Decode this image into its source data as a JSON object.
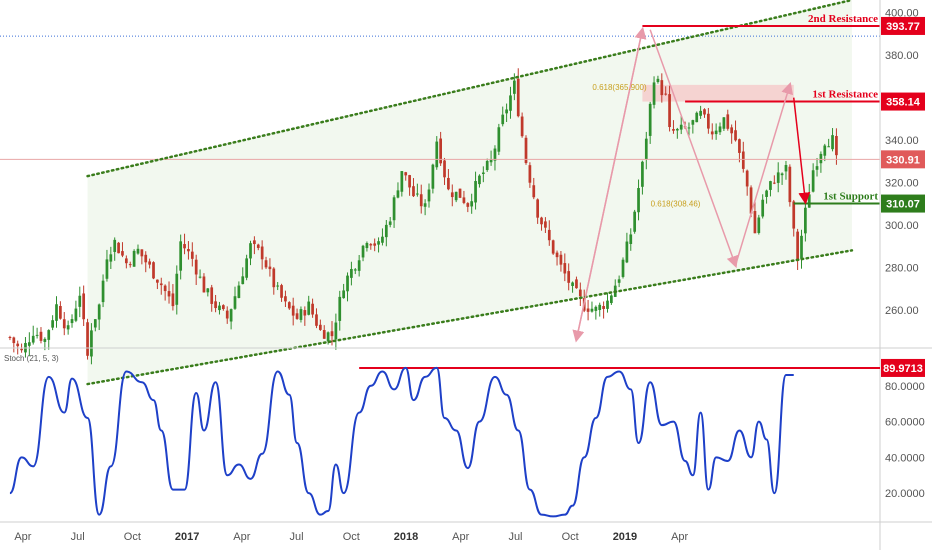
{
  "chart_data": [
    {
      "type": "candlestick",
      "panel": "price",
      "price_axis": {
        "ylim": [
          242,
          406
        ],
        "ticks": [
          "260.00",
          "280.00",
          "300.00",
          "320.00",
          "340.00",
          "380.00",
          "400.00"
        ]
      },
      "time_axis": {
        "ticks": [
          {
            "label": "Apr",
            "year": false
          },
          {
            "label": "Jul",
            "year": false
          },
          {
            "label": "Oct",
            "year": false
          },
          {
            "label": "2017",
            "year": true
          },
          {
            "label": "Apr",
            "year": false
          },
          {
            "label": "Jul",
            "year": false
          },
          {
            "label": "Oct",
            "year": false
          },
          {
            "label": "2018",
            "year": true
          },
          {
            "label": "Apr",
            "year": false
          },
          {
            "label": "Jul",
            "year": false
          },
          {
            "label": "Oct",
            "year": false
          },
          {
            "label": "2019",
            "year": true
          },
          {
            "label": "Apr",
            "year": false
          }
        ]
      },
      "close_path": [
        [
          0,
          247
        ],
        [
          3,
          240
        ],
        [
          6,
          250
        ],
        [
          9,
          246
        ],
        [
          12,
          262
        ],
        [
          15,
          250
        ],
        [
          18,
          268
        ],
        [
          20,
          238
        ],
        [
          21,
          252
        ],
        [
          23,
          262
        ],
        [
          25,
          286
        ],
        [
          27,
          292
        ],
        [
          30,
          282
        ],
        [
          33,
          288
        ],
        [
          36,
          280
        ],
        [
          39,
          272
        ],
        [
          42,
          262
        ],
        [
          44,
          292
        ],
        [
          47,
          284
        ],
        [
          50,
          270
        ],
        [
          53,
          262
        ],
        [
          56,
          256
        ],
        [
          59,
          272
        ],
        [
          62,
          290
        ],
        [
          65,
          286
        ],
        [
          68,
          272
        ],
        [
          71,
          262
        ],
        [
          74,
          256
        ],
        [
          77,
          262
        ],
        [
          80,
          250
        ],
        [
          83,
          248
        ],
        [
          86,
          272
        ],
        [
          89,
          282
        ],
        [
          92,
          294
        ],
        [
          95,
          290
        ],
        [
          98,
          304
        ],
        [
          101,
          326
        ],
        [
          104,
          314
        ],
        [
          107,
          308
        ],
        [
          110,
          340
        ],
        [
          113,
          316
        ],
        [
          116,
          314
        ],
        [
          118,
          310
        ],
        [
          121,
          322
        ],
        [
          124,
          330
        ],
        [
          127,
          350
        ],
        [
          130,
          366
        ],
        [
          133,
          330
        ],
        [
          136,
          306
        ],
        [
          139,
          292
        ],
        [
          142,
          280
        ],
        [
          145,
          270
        ],
        [
          148,
          262
        ],
        [
          151,
          260
        ],
        [
          154,
          264
        ],
        [
          157,
          276
        ],
        [
          160,
          296
        ],
        [
          163,
          328
        ],
        [
          166,
          370
        ],
        [
          169,
          360
        ],
        [
          170,
          344
        ],
        [
          172,
          344
        ],
        [
          175,
          346
        ],
        [
          178,
          352
        ],
        [
          181,
          344
        ],
        [
          184,
          350
        ],
        [
          187,
          340
        ],
        [
          190,
          318
        ],
        [
          192,
          296
        ],
        [
          194,
          312
        ],
        [
          197,
          322
        ],
        [
          200,
          326
        ],
        [
          202,
          296
        ],
        [
          203,
          284
        ],
        [
          205,
          306
        ],
        [
          207,
          326
        ],
        [
          210,
          340
        ],
        [
          212,
          340
        ],
        [
          213,
          330
        ]
      ],
      "channel": {
        "upper": [
          [
            20,
            323
          ],
          [
            217,
            406
          ]
        ],
        "lower": [
          [
            20,
            225
          ],
          [
            217,
            288
          ]
        ]
      },
      "levels": [
        {
          "name": "2nd Resistance",
          "value": 393.77,
          "label": "393.77",
          "color": "#e4001c",
          "note": "2nd Resistance"
        },
        {
          "name": "1st Resistance",
          "value": 358.14,
          "label": "358.14",
          "color": "#e4001c",
          "note": "1st Resistance"
        },
        {
          "name": "1st Support",
          "value": 310.07,
          "label": "310.07",
          "color": "#2e7d1c",
          "note": "1st Support"
        }
      ],
      "last_price": {
        "value": 330.91,
        "label": "330.91",
        "color": "#e05a5a"
      },
      "blue_dotted_line": 389,
      "fib_labels": [
        {
          "text": "0.618(365.900)",
          "x": 163,
          "y": 365
        },
        {
          "text": "0.618(308.46)",
          "x": 178,
          "y": 310
        }
      ],
      "arrows": [
        {
          "from": [
            146,
            246
          ],
          "to": [
            163,
            392
          ]
        },
        {
          "from": [
            165,
            392
          ],
          "to": [
            187,
            281
          ]
        },
        {
          "from": [
            187,
            281
          ],
          "to": [
            201,
            366
          ]
        }
      ],
      "forecast_arrow": {
        "from": [
          202,
          360
        ],
        "to": [
          205,
          311
        ]
      }
    },
    {
      "type": "line",
      "panel": "indicator",
      "title": "Stoch (21, 5, 3)",
      "ylim": [
        5,
        100
      ],
      "ticks": [
        "20.0000",
        "40.0000",
        "60.0000",
        "80.0000"
      ],
      "level": {
        "value": 89.9713,
        "label": "89.9713",
        "color": "#e4001c"
      },
      "series_color": "#1e40c8",
      "points": [
        [
          0,
          20
        ],
        [
          3,
          40
        ],
        [
          6,
          35
        ],
        [
          10,
          85
        ],
        [
          14,
          65
        ],
        [
          16,
          84
        ],
        [
          20,
          62
        ],
        [
          23,
          8
        ],
        [
          26,
          35
        ],
        [
          30,
          88
        ],
        [
          34,
          82
        ],
        [
          37,
          72
        ],
        [
          39,
          55
        ],
        [
          42,
          22
        ],
        [
          45,
          22
        ],
        [
          48,
          76
        ],
        [
          50,
          55
        ],
        [
          53,
          82
        ],
        [
          56,
          30
        ],
        [
          59,
          36
        ],
        [
          62,
          28
        ],
        [
          65,
          42
        ],
        [
          69,
          88
        ],
        [
          72,
          75
        ],
        [
          74,
          48
        ],
        [
          77,
          20
        ],
        [
          80,
          8
        ],
        [
          82,
          10
        ],
        [
          84,
          36
        ],
        [
          86,
          20
        ],
        [
          90,
          65
        ],
        [
          93,
          80
        ],
        [
          96,
          88
        ],
        [
          99,
          78
        ],
        [
          102,
          90
        ],
        [
          104,
          72
        ],
        [
          107,
          85
        ],
        [
          110,
          90
        ],
        [
          112,
          62
        ],
        [
          115,
          55
        ],
        [
          118,
          34
        ],
        [
          121,
          60
        ],
        [
          125,
          85
        ],
        [
          128,
          75
        ],
        [
          131,
          55
        ],
        [
          134,
          22
        ],
        [
          137,
          8
        ],
        [
          140,
          7
        ],
        [
          143,
          8
        ],
        [
          145,
          13
        ],
        [
          148,
          40
        ],
        [
          151,
          62
        ],
        [
          154,
          85
        ],
        [
          157,
          88
        ],
        [
          160,
          78
        ],
        [
          162,
          48
        ],
        [
          165,
          82
        ],
        [
          168,
          58
        ],
        [
          171,
          60
        ],
        [
          174,
          38
        ],
        [
          176,
          30
        ],
        [
          178,
          65
        ],
        [
          180,
          22
        ],
        [
          182,
          40
        ],
        [
          185,
          38
        ],
        [
          188,
          55
        ],
        [
          191,
          40
        ],
        [
          193,
          60
        ],
        [
          195,
          50
        ],
        [
          197,
          20
        ],
        [
          200,
          86
        ],
        [
          202,
          86
        ]
      ]
    }
  ]
}
